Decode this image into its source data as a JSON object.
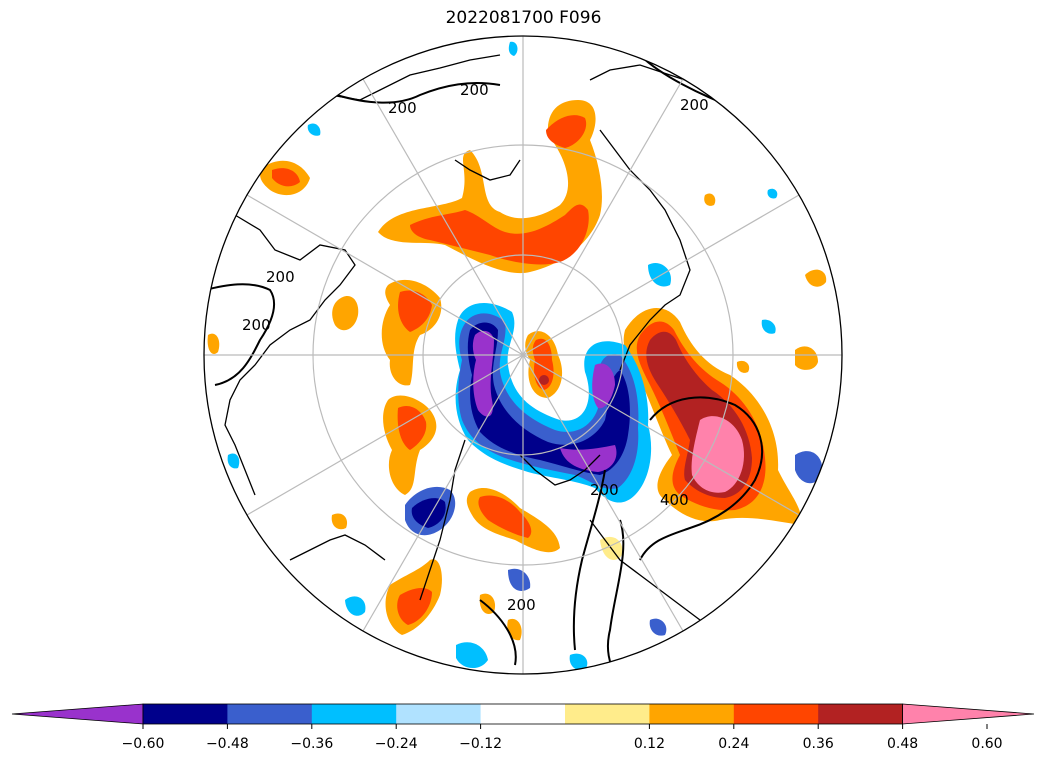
{
  "title": "2022081700 F096",
  "contour_labels": [
    "200",
    "200",
    "200",
    "200",
    "200",
    "200",
    "200",
    "400"
  ],
  "colorbar": {
    "colors": [
      "#9932cc",
      "#00008b",
      "#3a5fcd",
      "#00bfff",
      "#b0e2ff",
      "#ffffff",
      "#ffec8b",
      "#ffa500",
      "#ff4500",
      "#b22222",
      "#ff82ab"
    ],
    "tick_labels": [
      "−0.60",
      "−0.48",
      "−0.36",
      "−0.24",
      "−0.12",
      "0.12",
      "0.24",
      "0.36",
      "0.48",
      "0.60"
    ]
  }
}
